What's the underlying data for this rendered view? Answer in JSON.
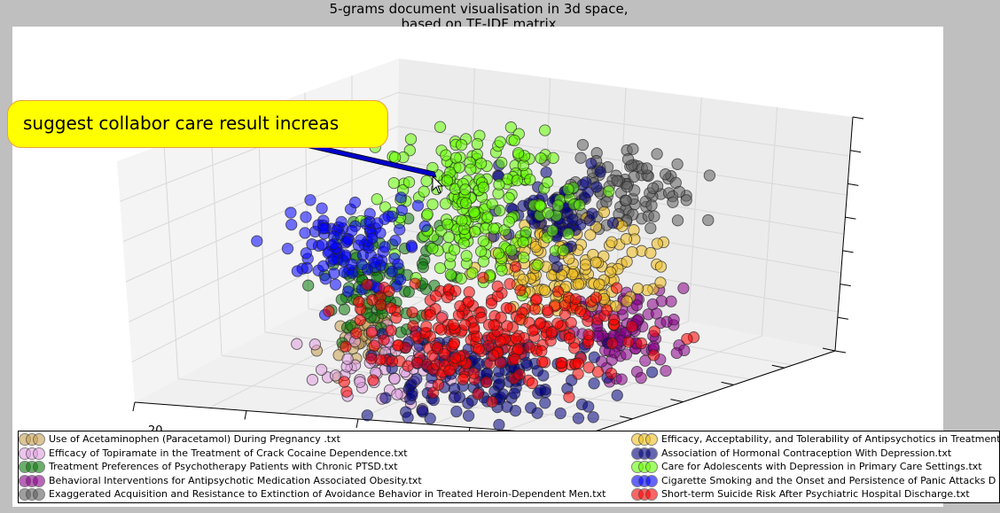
{
  "chart_data": {
    "type": "scatter",
    "title": "5-grams document visualisation in 3d space,",
    "subtitle": "based on TF-IDF matrix",
    "projection": "3d",
    "grid": true,
    "legend_position": "bottom",
    "annotation": "suggest collabor care result increas",
    "visible_tick_label": "20",
    "series": [
      {
        "name": "Use of Acetaminophen (Paracetamol) During Pregnancy .txt",
        "color": "#c8a050"
      },
      {
        "name": "Efficacy of Topiramate in the Treatment of Crack Cocaine Dependence.txt",
        "color": "#e0a0e0"
      },
      {
        "name": "Treatment Preferences of Psychotherapy Patients with Chronic PTSD.txt",
        "color": "#0a7a0a"
      },
      {
        "name": "Behavioral Interventions for Antipsychotic Medication Associated Obesity.txt",
        "color": "#8b008b"
      },
      {
        "name": "Exaggerated Acquisition and Resistance to Extinction of Avoidance Behavior in Treated Heroin-Dependent Men.txt",
        "color": "#606060"
      },
      {
        "name": "Efficacy, Acceptability, and Tolerability of Antipsychotics in Treatment",
        "color": "#f0c020"
      },
      {
        "name": "Association of Hormonal Contraception With Depression.txt",
        "color": "#000080"
      },
      {
        "name": "Care for Adolescents with Depression in Primary Care Settings.txt",
        "color": "#66ff00"
      },
      {
        "name": "Cigarette Smoking and the Onset and Persistence of Panic Attacks D",
        "color": "#0000ff"
      },
      {
        "name": "Short-term Suicide Risk After Psychiatric Hospital Discharge.txt",
        "color": "#ff0000"
      }
    ]
  }
}
